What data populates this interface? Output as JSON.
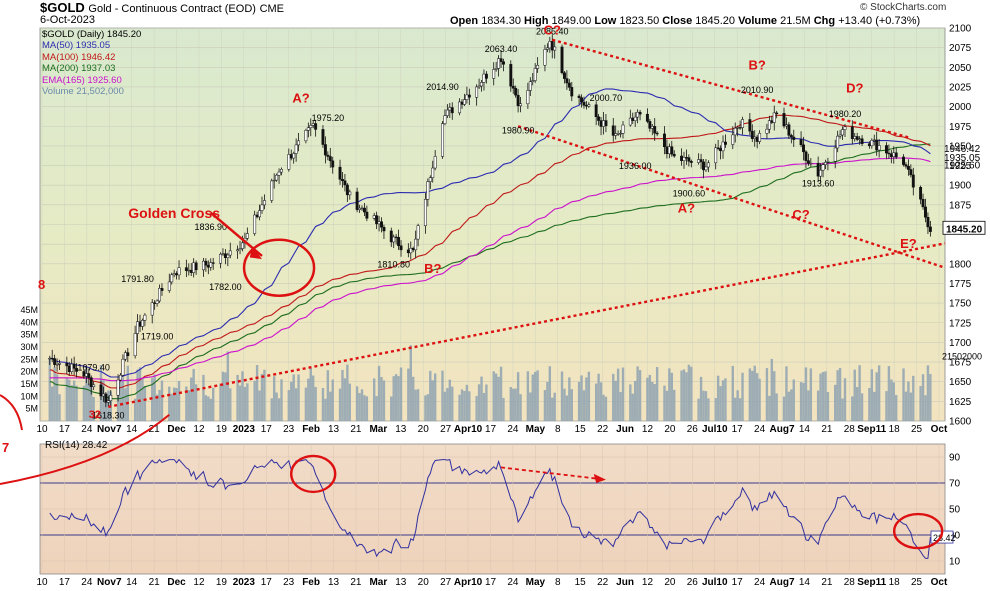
{
  "header": {
    "symbol": "$GOLD",
    "name": "Gold - Continuous Contract (EOD)",
    "exchange": "CME",
    "date": "6-Oct-2023",
    "open_label": "Open",
    "open": "1834.30",
    "high_label": "High",
    "high": "1849.00",
    "low_label": "Low",
    "low": "1823.50",
    "close_label": "Close",
    "close": "1845.20",
    "volume_label": "Volume",
    "volume": "21.5M",
    "chg_label": "Chg",
    "chg": "+13.40 (+0.73%)",
    "brand": "© StockCharts.com"
  },
  "legend": [
    {
      "text": "$GOLD (Daily) 1845.20",
      "color": "#000000"
    },
    {
      "text": "MA(50) 1935.05",
      "color": "#2b2bb0"
    },
    {
      "text": "MA(100) 1946.42",
      "color": "#c01818"
    },
    {
      "text": "MA(200) 1937.03",
      "color": "#1e6e1e"
    },
    {
      "text": "EMA(165) 1925.60",
      "color": "#cc10cc"
    },
    {
      "text": "Volume 21,502,000",
      "color": "#6a8aaa"
    }
  ],
  "chart_data": [
    {
      "type": "line",
      "title": "$GOLD (Daily)",
      "x_dates": [
        "2022-10-10",
        "2022-10-24",
        "2022-11-03",
        "2022-11-15",
        "2022-11-30",
        "2022-12-15",
        "2022-12-29",
        "2023-01-12",
        "2023-01-26",
        "2023-02-10",
        "2023-02-28",
        "2023-03-08",
        "2023-03-20",
        "2023-04-04",
        "2023-04-13",
        "2023-04-21",
        "2023-05-03",
        "2023-05-12",
        "2023-05-30",
        "2023-06-08",
        "2023-06-23",
        "2023-07-06",
        "2023-07-20",
        "2023-07-27",
        "2023-08-04",
        "2023-08-21",
        "2023-08-31",
        "2023-09-15",
        "2023-09-25",
        "2023-10-06"
      ],
      "close": [
        1680,
        1660,
        1625,
        1720,
        1790,
        1800,
        1830,
        1920,
        1975,
        1885,
        1830,
        1815,
        1985,
        2030,
        2063,
        2000,
        2085,
        2020,
        1960,
        1990,
        1935,
        1925,
        1980,
        1960,
        1990,
        1915,
        1970,
        1950,
        1930,
        1845
      ],
      "ylim": [
        1600,
        2100
      ],
      "yticks": [
        1600,
        1625,
        1650,
        1675,
        1700,
        1725,
        1750,
        1775,
        1800,
        1825,
        1850,
        1875,
        1900,
        1925,
        1950,
        1975,
        2000,
        2025,
        2050,
        2075,
        2100
      ],
      "x_ticks": [
        "10",
        "17",
        "24",
        "Nov7",
        "14",
        "21",
        "Dec",
        "12",
        "19",
        "2023",
        "17",
        "23",
        "Feb",
        "13",
        "21",
        "Mar",
        "13",
        "20",
        "27",
        "Apr10",
        "17",
        "24",
        "May",
        "8",
        "15",
        "22",
        "Jun",
        "12",
        "20",
        "26",
        "Jul10",
        "17",
        "24",
        "Aug7",
        "14",
        "21",
        "28",
        "Sep11",
        "18",
        "25",
        "Oct"
      ],
      "price_labels": [
        {
          "date": "2022-10-28",
          "value": 1679.4,
          "text": "1679.40"
        },
        {
          "date": "2022-11-03",
          "value": 1618.3,
          "text": "1618.30"
        },
        {
          "date": "2022-11-15",
          "value": 1791.8,
          "text": "1791.80"
        },
        {
          "date": "2022-11-23",
          "value": 1719.0,
          "text": "1719.00"
        },
        {
          "date": "2022-12-15",
          "value": 1836.9,
          "text": "1836.90"
        },
        {
          "date": "2022-12-21",
          "value": 1782.0,
          "text": "1782.00"
        },
        {
          "date": "2023-02-01",
          "value": 1975.2,
          "text": "1975.20"
        },
        {
          "date": "2023-02-28",
          "value": 1810.8,
          "text": "1810.80"
        },
        {
          "date": "2023-03-20",
          "value": 2014.9,
          "text": "2014.90"
        },
        {
          "date": "2023-04-13",
          "value": 2063.4,
          "text": "2063.40"
        },
        {
          "date": "2023-04-20",
          "value": 1980.9,
          "text": "1980.90"
        },
        {
          "date": "2023-05-04",
          "value": 2085.4,
          "text": "2085.40"
        },
        {
          "date": "2023-05-26",
          "value": 2000.7,
          "text": "2000.70"
        },
        {
          "date": "2023-06-07",
          "value": 1936.0,
          "text": "1936.00"
        },
        {
          "date": "2023-06-29",
          "value": 1900.6,
          "text": "1900.60"
        },
        {
          "date": "2023-07-27",
          "value": 2010.9,
          "text": "2010.90"
        },
        {
          "date": "2023-08-21",
          "value": 1913.6,
          "text": "1913.60"
        },
        {
          "date": "2023-09-01",
          "value": 1980.2,
          "text": "1980.20"
        }
      ],
      "ma_labels": {
        "ma100": "1946.42",
        "ma50": "1935.05",
        "ema165": "1925.60",
        "close": "1845.20",
        "volume": "21502000"
      },
      "annotations": [
        "A?",
        "B?",
        "C?",
        "A?",
        "B?",
        "C?",
        "D?",
        "E?",
        "Golden Cross",
        "8",
        "32"
      ],
      "volume_ticks": [
        "5M",
        "10M",
        "15M",
        "20M",
        "25M",
        "30M",
        "35M",
        "40M",
        "45M"
      ],
      "grid": true
    },
    {
      "type": "line",
      "title": "RSI(14) 28.42",
      "ylim": [
        0,
        100
      ],
      "yticks": [
        10,
        30,
        50,
        70,
        90
      ],
      "guides": [
        30,
        70
      ],
      "last_value": "28.42",
      "x_ticks": [
        "10",
        "17",
        "24",
        "Nov7",
        "14",
        "21",
        "Dec",
        "12",
        "19",
        "2023",
        "17",
        "23",
        "Feb",
        "13",
        "21",
        "Mar",
        "13",
        "20",
        "27",
        "Apr10",
        "17",
        "24",
        "May",
        "8",
        "15",
        "22",
        "Jun",
        "12",
        "20",
        "26",
        "Jul10",
        "17",
        "24",
        "Aug7",
        "14",
        "21",
        "28",
        "Sep11",
        "18",
        "25",
        "Oct"
      ],
      "left_annotation": "7"
    }
  ]
}
